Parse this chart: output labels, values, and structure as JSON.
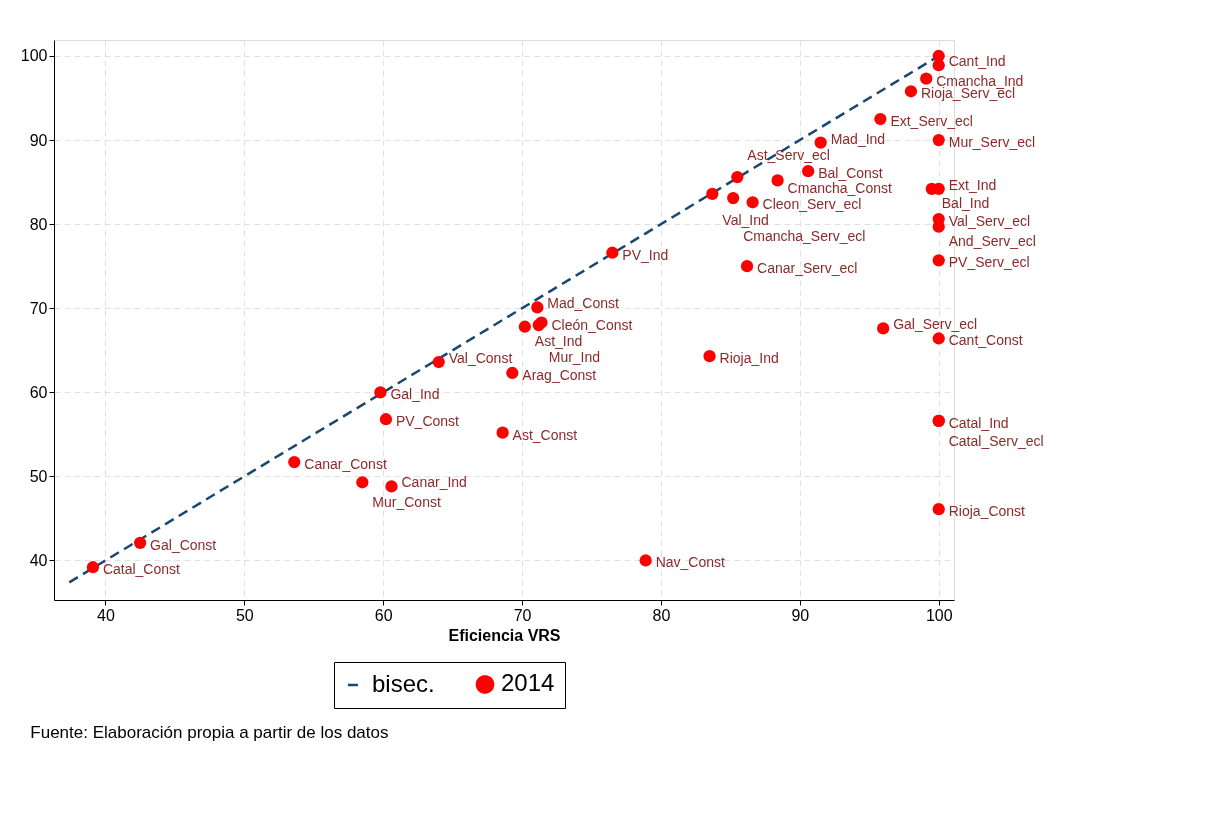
{
  "chart_data": {
    "type": "scatter",
    "xlabel": "Eficiencia VRS",
    "xlim": [
      36.3,
      101.1
    ],
    "xticks": [
      40,
      50,
      60,
      70,
      80,
      90,
      100
    ],
    "ylim": [
      35.3,
      101.9
    ],
    "yticks": [
      40,
      50,
      60,
      70,
      80,
      90,
      100
    ],
    "grid": true,
    "legend": "bottom",
    "annotations": [
      "Fuente: Elaboración propia a partir de los datos"
    ],
    "series": [
      {
        "name": "bisec.",
        "type": "line",
        "line_style": "dashed",
        "marker": "none",
        "color": "#1a476f",
        "x": [
          37.4,
          100
        ],
        "values": [
          37.4,
          100
        ]
      },
      {
        "name": "2014",
        "marker": "circle",
        "color": "#ff0000",
        "x": [
          39.1,
          42.5,
          53.6,
          58.5,
          60.6,
          59.8,
          60.2,
          64.0,
          69.3,
          68.6,
          70.2,
          71.1,
          71.4,
          71.2,
          76.5,
          78.9,
          83.5,
          83.7,
          85.2,
          85.5,
          86.6,
          88.4,
          90.6,
          86.2,
          91.5,
          95.8,
          98.0,
          99.1,
          100,
          100,
          99.5,
          100,
          100,
          100,
          100,
          96.0,
          100,
          100,
          100,
          100,
          100
        ],
        "values": [
          39.2,
          42.1,
          51.7,
          49.3,
          48.8,
          60.0,
          56.8,
          63.6,
          62.3,
          55.2,
          67.8,
          70.1,
          68.3,
          68.0,
          76.6,
          40.0,
          64.3,
          83.6,
          83.1,
          85.6,
          82.6,
          85.2,
          86.3,
          75.0,
          89.7,
          92.5,
          95.8,
          97.3,
          98.9,
          90.0,
          84.2,
          84.2,
          80.6,
          79.7,
          75.7,
          67.6,
          66.4,
          56.6,
          56.6,
          46.1,
          100
        ],
        "value_labels": [
          "Catal_Const",
          "Gal_Const",
          "Canar_Const",
          "Mur_Const",
          "Canar_Ind",
          "Gal_Ind",
          "PV_Const",
          "Val_Const",
          "Arag_Const",
          "Ast_Const",
          "Ast_Ind",
          "Mad_Const",
          "Cleón_Const",
          "Mur_Ind",
          "PV_Ind",
          "Nav_Const",
          "Rioja_Ind",
          "Val_Ind",
          "Cmancha_Serv_ecl",
          "Ast_Serv_ecl",
          "Cleon_Serv_ecl",
          "Cmancha_Const",
          "Bal_Const",
          "Canar_Serv_ecl",
          "Mad_Ind",
          "Ext_Serv_ecl",
          "Rioja_Serv_ecl",
          "Cmancha_Ind",
          "Cant_Ind",
          "Mur_Serv_ecl",
          "Bal_Ind",
          "Ext_Ind",
          "Val_Serv_ecl",
          "And_Serv_ecl",
          "PV_Serv_ecl",
          "Gal_Serv_ecl",
          "Cant_Const",
          "Catal_Ind",
          "Catal_Serv_ecl",
          "Rioja_Const",
          null
        ]
      }
    ]
  }
}
